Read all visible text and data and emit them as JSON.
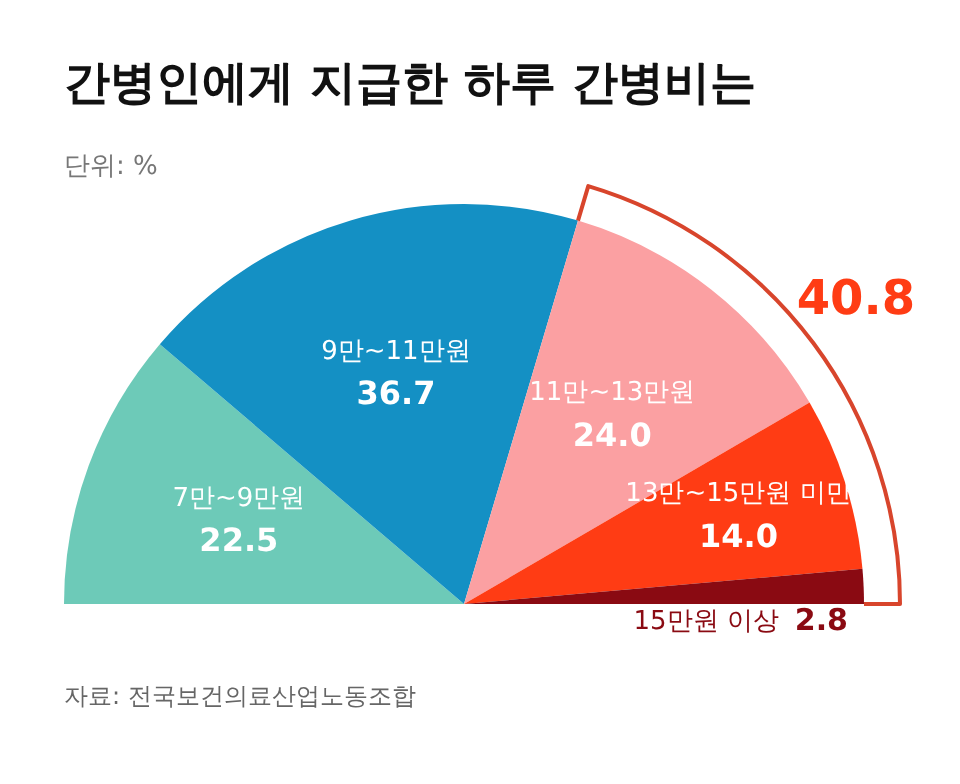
{
  "chart_data": {
    "type": "pie",
    "title": "간병인에게 지급한 하루 간병비는",
    "subtitle": "단위: %",
    "categories": [
      "7만~9만원",
      "9만~11만원",
      "11만~13만원",
      "13만~15만원 미만",
      "15만원 이상"
    ],
    "values": [
      22.5,
      36.7,
      24.0,
      14.0,
      2.8
    ],
    "colors": [
      "#6dcab8",
      "#1490c4",
      "#fba0a2",
      "#ff3c14",
      "#8a0a12"
    ],
    "value_labels": [
      "22.5",
      "36.7",
      "24.0",
      "14.0",
      "2.8"
    ],
    "legend": false,
    "annotations": [
      "40.8",
      "자료: 전국보건의료산업노동조합"
    ]
  }
}
